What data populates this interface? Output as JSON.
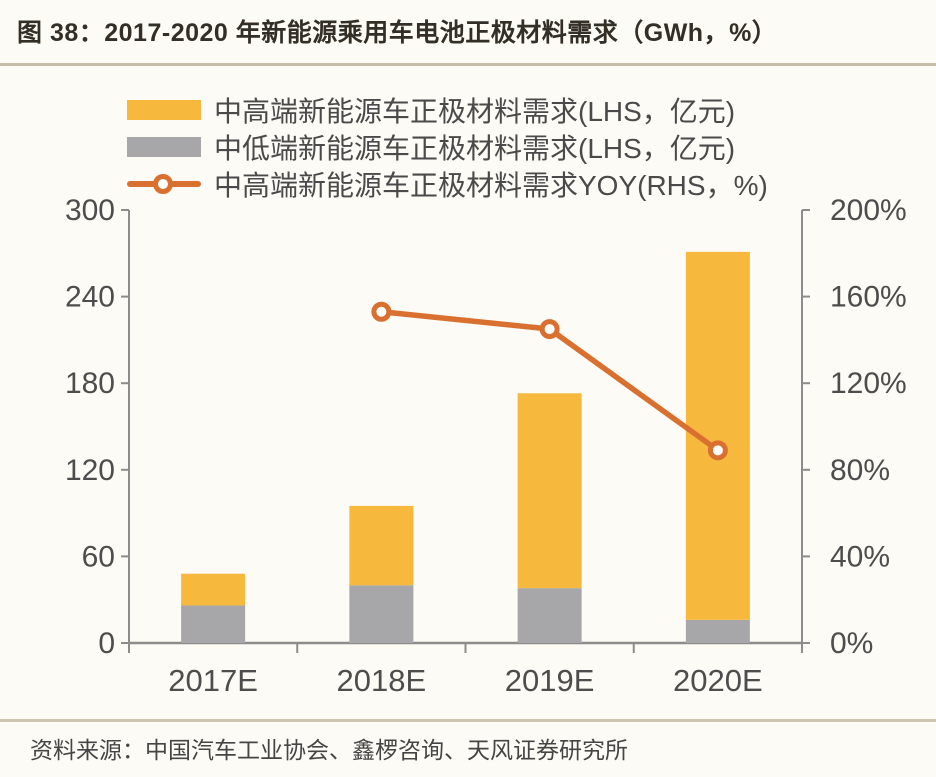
{
  "title": "图 38：2017-2020 年新能源乘用车电池正极材料需求（GWh，%）",
  "source": "资料来源：中国汽车工业协会、鑫椤咨询、天风证券研究所",
  "colors": {
    "high_end_bar": "#F6B93E",
    "low_end_bar": "#A7A7A9",
    "yoy_line": "#D9702F",
    "axis_line": "#8C8C8C",
    "tick_text": "#4D4D4D",
    "title_text": "#332E26",
    "rule": "#C6BCA8"
  },
  "legend": {
    "items": [
      {
        "label": "中高端新能源车正极材料需求(LHS，亿元)",
        "swatch": "bar-yellow"
      },
      {
        "label": "中低端新能源车正极材料需求(LHS，亿元)",
        "swatch": "bar-gray"
      },
      {
        "label": "中高端新能源车正极材料需求YOY(RHS，%)",
        "swatch": "line-orange"
      }
    ]
  },
  "chart_data": {
    "type": "bar",
    "subtype": "stacked-bars-with-line",
    "categories": [
      "2017E",
      "2018E",
      "2019E",
      "2020E"
    ],
    "series": [
      {
        "name": "中高端新能源车正极材料需求(LHS，亿元)",
        "type": "bar",
        "axis": "left",
        "color": "#F6B93E",
        "values": [
          22,
          55,
          135,
          255
        ]
      },
      {
        "name": "中低端新能源车正极材料需求(LHS，亿元)",
        "type": "bar",
        "axis": "left",
        "color": "#A7A7A9",
        "values": [
          26,
          40,
          38,
          16
        ]
      },
      {
        "name": "中高端新能源车正极材料需求YOY(RHS，%)",
        "type": "line",
        "axis": "right",
        "color": "#D9702F",
        "values": [
          null,
          153,
          145,
          89
        ]
      }
    ],
    "left_axis": {
      "min": 0,
      "max": 300,
      "ticks": [
        "0",
        "60",
        "120",
        "180",
        "240",
        "300"
      ]
    },
    "right_axis": {
      "min": 0,
      "max": 200,
      "ticks": [
        "0%",
        "40%",
        "80%",
        "120%",
        "160%",
        "200%"
      ]
    },
    "legend_position": "top",
    "grid": false,
    "title": "图 38：2017-2020 年新能源乘用车电池正极材料需求（GWh，%）"
  }
}
